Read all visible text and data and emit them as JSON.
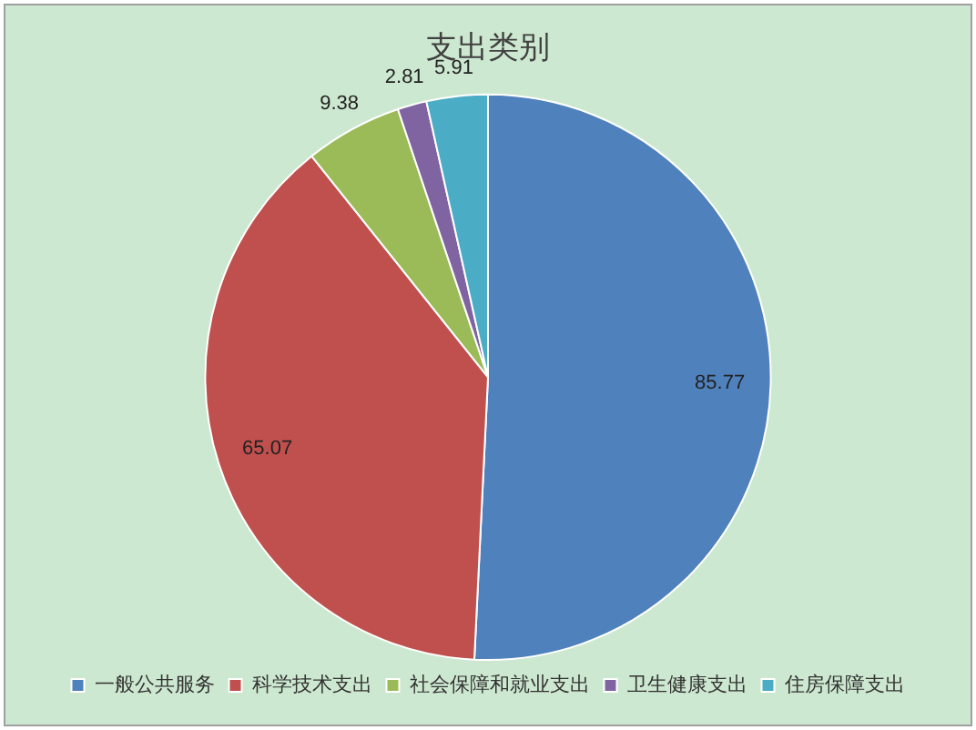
{
  "chart_data": {
    "type": "pie",
    "title": "支出类别",
    "categories": [
      "一般公共服务",
      "科学技术支出",
      "社会保障和就业支出",
      "卫生健康支出",
      "住房保障支出"
    ],
    "values": [
      85.77,
      65.07,
      9.38,
      2.81,
      5.91
    ],
    "colors": [
      "#4f81bd",
      "#c0504d",
      "#9bbb59",
      "#8064a2",
      "#4bacc6"
    ],
    "data_labels": true,
    "legend": "bottom"
  }
}
